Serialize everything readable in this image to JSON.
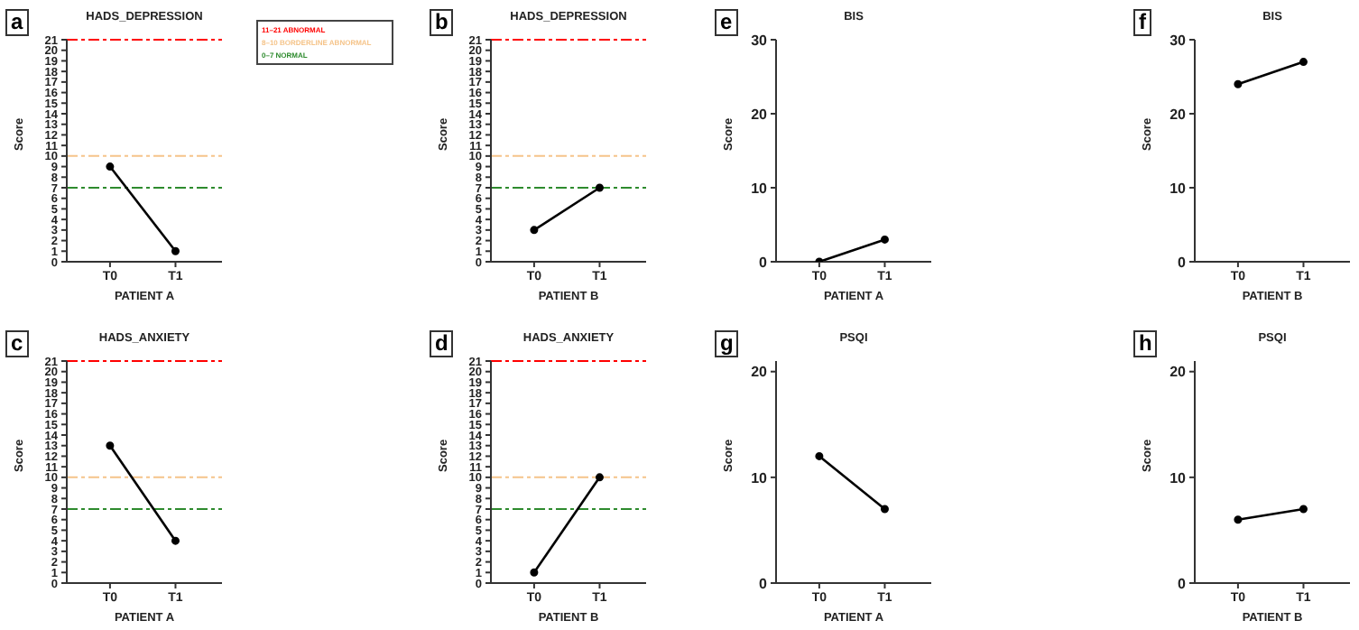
{
  "chart_data": [
    {
      "type": "line",
      "title": "HADS_DEPRESSION",
      "xlabel": "PATIENT A",
      "ylabel": "Score",
      "categories": [
        "T0",
        "T1"
      ],
      "values": [
        9,
        1
      ],
      "color": "#000000",
      "marker": "circle",
      "ylim": [
        0,
        21
      ],
      "yticks": [
        0,
        1,
        2,
        3,
        4,
        5,
        6,
        7,
        8,
        9,
        10,
        11,
        12,
        13,
        14,
        15,
        16,
        17,
        18,
        19,
        20,
        21
      ],
      "legend": "top right",
      "annotations": [
        "a"
      ],
      "ref_lines": [
        {
          "axis": "y",
          "value": 21,
          "label": "11–21 ABNORMAL",
          "color": "#ff0000",
          "line_style": "dashed"
        },
        {
          "axis": "y",
          "value": 10,
          "label": "8–10 BORDERLINE ABNORMAL",
          "color": "#f5c48a",
          "line_style": "dashed"
        },
        {
          "axis": "y",
          "value": 7,
          "label": "0–7 NORMAL",
          "color": "#2e8b2e",
          "line_style": "dashed"
        }
      ]
    },
    {
      "type": "line",
      "title": "HADS_DEPRESSION",
      "xlabel": "PATIENT B",
      "ylabel": "Score",
      "categories": [
        "T0",
        "T1"
      ],
      "values": [
        3,
        7
      ],
      "color": "#000000",
      "marker": "circle",
      "ylim": [
        0,
        21
      ],
      "yticks": [
        0,
        1,
        2,
        3,
        4,
        5,
        6,
        7,
        8,
        9,
        10,
        11,
        12,
        13,
        14,
        15,
        16,
        17,
        18,
        19,
        20,
        21
      ],
      "annotations": [
        "b"
      ],
      "ref_lines": [
        {
          "axis": "y",
          "value": 21,
          "color": "#ff0000",
          "line_style": "dashed"
        },
        {
          "axis": "y",
          "value": 10,
          "color": "#f5c48a",
          "line_style": "dashed"
        },
        {
          "axis": "y",
          "value": 7,
          "color": "#2e8b2e",
          "line_style": "dashed"
        }
      ]
    },
    {
      "type": "line",
      "title": "BIS",
      "xlabel": "PATIENT A",
      "ylabel": "Score",
      "categories": [
        "T0",
        "T1"
      ],
      "values": [
        0,
        3
      ],
      "color": "#000000",
      "marker": "circle",
      "ylim": [
        0,
        30
      ],
      "yticks": [
        0,
        10,
        20,
        30
      ],
      "annotations": [
        "e"
      ]
    },
    {
      "type": "line",
      "title": "BIS",
      "xlabel": "PATIENT B",
      "ylabel": "Score",
      "categories": [
        "T0",
        "T1"
      ],
      "values": [
        24,
        27
      ],
      "color": "#000000",
      "marker": "circle",
      "ylim": [
        0,
        30
      ],
      "yticks": [
        0,
        10,
        20,
        30
      ],
      "annotations": [
        "f"
      ]
    },
    {
      "type": "line",
      "title": "HADS_ANXIETY",
      "xlabel": "PATIENT A",
      "ylabel": "Score",
      "categories": [
        "T0",
        "T1"
      ],
      "values": [
        13,
        4
      ],
      "color": "#000000",
      "marker": "circle",
      "ylim": [
        0,
        21
      ],
      "yticks": [
        0,
        1,
        2,
        3,
        4,
        5,
        6,
        7,
        8,
        9,
        10,
        11,
        12,
        13,
        14,
        15,
        16,
        17,
        18,
        19,
        20,
        21
      ],
      "annotations": [
        "c"
      ],
      "ref_lines": [
        {
          "axis": "y",
          "value": 21,
          "color": "#ff0000",
          "line_style": "dashed"
        },
        {
          "axis": "y",
          "value": 10,
          "color": "#f5c48a",
          "line_style": "dashed"
        },
        {
          "axis": "y",
          "value": 7,
          "color": "#2e8b2e",
          "line_style": "dashed"
        }
      ]
    },
    {
      "type": "line",
      "title": "HADS_ANXIETY",
      "xlabel": "PATIENT B",
      "ylabel": "Score",
      "categories": [
        "T0",
        "T1"
      ],
      "values": [
        1,
        10
      ],
      "color": "#000000",
      "marker": "circle",
      "ylim": [
        0,
        21
      ],
      "yticks": [
        0,
        1,
        2,
        3,
        4,
        5,
        6,
        7,
        8,
        9,
        10,
        11,
        12,
        13,
        14,
        15,
        16,
        17,
        18,
        19,
        20,
        21
      ],
      "annotations": [
        "d"
      ],
      "ref_lines": [
        {
          "axis": "y",
          "value": 21,
          "color": "#ff0000",
          "line_style": "dashed"
        },
        {
          "axis": "y",
          "value": 10,
          "color": "#f5c48a",
          "line_style": "dashed"
        },
        {
          "axis": "y",
          "value": 7,
          "color": "#2e8b2e",
          "line_style": "dashed"
        }
      ]
    },
    {
      "type": "line",
      "title": "PSQI",
      "xlabel": "PATIENT A",
      "ylabel": "Score",
      "categories": [
        "T0",
        "T1"
      ],
      "values": [
        12,
        7
      ],
      "color": "#000000",
      "marker": "circle",
      "ylim": [
        0,
        21
      ],
      "yticks": [
        0,
        10,
        20
      ],
      "annotations": [
        "g"
      ]
    },
    {
      "type": "line",
      "title": "PSQI",
      "xlabel": "PATIENT B",
      "ylabel": "Score",
      "categories": [
        "T0",
        "T1"
      ],
      "values": [
        6,
        7
      ],
      "color": "#000000",
      "marker": "circle",
      "ylim": [
        0,
        21
      ],
      "yticks": [
        0,
        10,
        20
      ],
      "annotations": [
        "h"
      ]
    }
  ]
}
